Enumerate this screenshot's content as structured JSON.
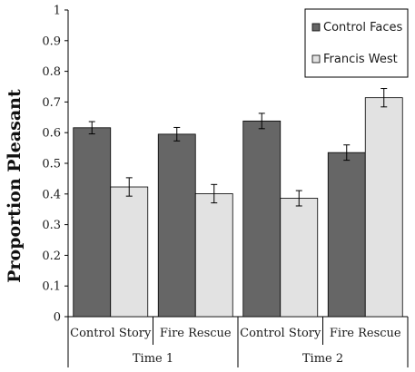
{
  "colors": {
    "series_0": "#666666",
    "series_1": "#e2e2e2",
    "stroke": "#000000"
  },
  "chart_data": {
    "type": "bar",
    "ylabel": "Proportion Pleasant",
    "ylim": [
      0,
      1
    ],
    "yticks": [
      "0",
      "0.1",
      "0.2",
      "0.3",
      "0.4",
      "0.5",
      "0.6",
      "0.7",
      "0.8",
      "0.9",
      "1"
    ],
    "groups": [
      {
        "label": "Time 1",
        "categories": [
          "Control Story",
          "Fire Rescue"
        ]
      },
      {
        "label": "Time 2",
        "categories": [
          "Control Story",
          "Fire Rescue"
        ]
      }
    ],
    "categories": [
      "Control Story",
      "Fire Rescue",
      "Control Story",
      "Fire Rescue"
    ],
    "series": [
      {
        "name": "Control Faces",
        "values": [
          0.616,
          0.595,
          0.638,
          0.535
        ],
        "errors": [
          0.02,
          0.022,
          0.025,
          0.025
        ]
      },
      {
        "name": "Francis West",
        "values": [
          0.423,
          0.401,
          0.386,
          0.714
        ],
        "errors": [
          0.03,
          0.03,
          0.025,
          0.03
        ]
      }
    ],
    "legend_position": "top-right",
    "grid": false
  }
}
